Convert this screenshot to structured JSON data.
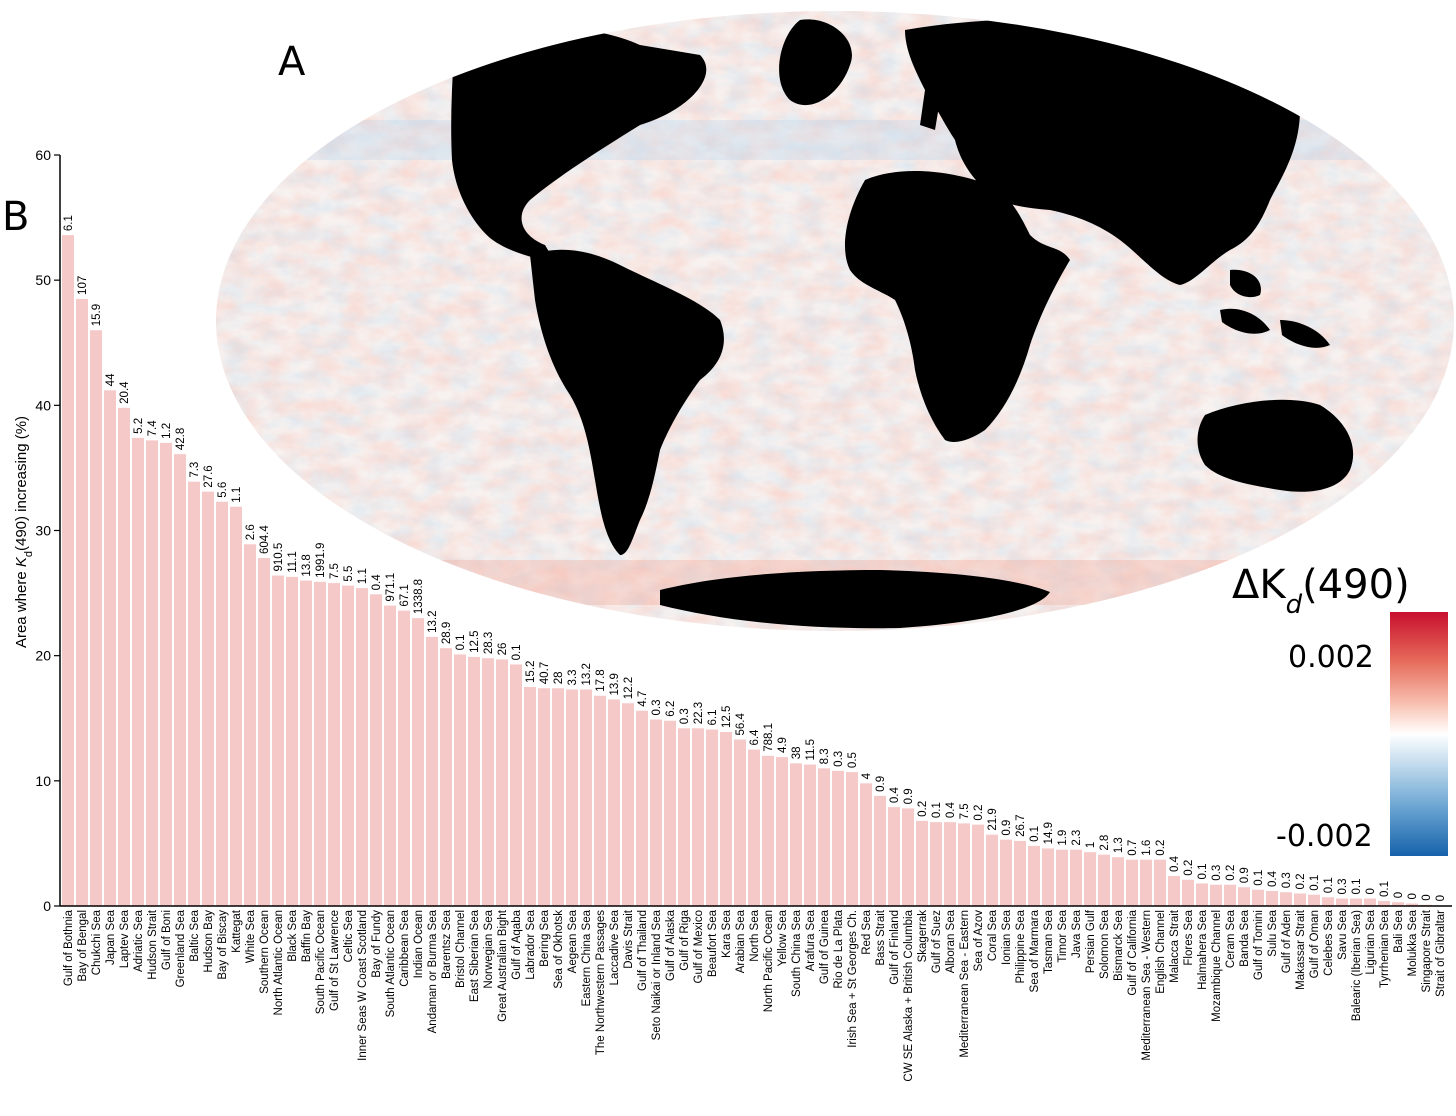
{
  "panels": {
    "map_label": "A",
    "chart_label": "B"
  },
  "colors": {
    "bar": "#f6c9c9",
    "bar_edge": "#efb3b3",
    "land": "#000000",
    "ocean_base": "#f7f3f2",
    "pos_strong": "#d7192b",
    "pos_light": "#f4a18a",
    "neg_strong": "#1f6fb5",
    "neg_light": "#a9cde6"
  },
  "map": {
    "icon": "world-map-mollweide",
    "colorbar": {
      "title_main": "ΔK",
      "title_sub": "d",
      "title_suffix": "(490)",
      "max_label": "0.002",
      "min_label": "-0.002"
    }
  },
  "chart_data": {
    "type": "bar",
    "ylabel_prefix": "Area where ",
    "ylabel_k": "K",
    "ylabel_sub": "d",
    "ylabel_suffix": "(490) increasing (%)",
    "ylim": [
      0,
      60
    ],
    "yticks": [
      "0",
      "10",
      "20",
      "30",
      "40",
      "50",
      "60"
    ],
    "grid": false,
    "categories": [
      "Gulf of Bothnia",
      "Bay of Bengal",
      "Chukchi Sea",
      "Japan Sea",
      "Laptev Sea",
      "Adriatic Sea",
      "Hudson Strait",
      "Gulf of Boni",
      "Greenland Sea",
      "Baltic Sea",
      "Hudson Bay",
      "Bay of Biscay",
      "Kattegat",
      "White Sea",
      "Southern Ocean",
      "North Atlantic Ocean",
      "Black Sea",
      "Baffin Bay",
      "South Pacific Ocean",
      "Gulf of St Lawrence",
      "Celtic Sea",
      "Inner Seas W Coast Scotland",
      "Bay of Fundy",
      "South Atlantic Ocean",
      "Caribbean Sea",
      "Indian Ocean",
      "Andaman or Burma Sea",
      "Barentsz Sea",
      "Bristol Channel",
      "East Siberian Sea",
      "Norwegian Sea",
      "Great Australian Bight",
      "Gulf of Aqaba",
      "Labrador Sea",
      "Bering Sea",
      "Sea of Okhotsk",
      "Aegean Sea",
      "Eastern China Sea",
      "The Northwestern Passages",
      "Laccadive Sea",
      "Davis Strait",
      "Gulf of Thailand",
      "Seto Naikai or Inland Sea",
      "Gulf of Alaska",
      "Gulf of Riga",
      "Gulf of Mexico",
      "Beaufort Sea",
      "Kara Sea",
      "Arabian Sea",
      "North Sea",
      "North Pacific Ocean",
      "Yellow Sea",
      "South China Sea",
      "Arafura Sea",
      "Gulf of Guinea",
      "Rio de La Plata",
      "Irish Sea + St Georges Ch.",
      "Red Sea",
      "Bass Strait",
      "Gulf of Finland",
      "CW SE Alaska + British Columbia",
      "Skagerrak",
      "Gulf of Suez",
      "Alboran Sea",
      "Mediterranean Sea - Eastern",
      "Sea of Azov",
      "Coral Sea",
      "Ionian Sea",
      "Philippine Sea",
      "Sea of Marmara",
      "Tasman Sea",
      "Timor Sea",
      "Java Sea",
      "Persian Gulf",
      "Solomon Sea",
      "Bismarck Sea",
      "Gulf of California",
      "Mediterranean Sea - Western",
      "English Channel",
      "Malacca Strait",
      "Flores Sea",
      "Halmahera Sea",
      "Mozambique Channel",
      "Ceram Sea",
      "Banda Sea",
      "Gulf of Tomini",
      "Sulu Sea",
      "Gulf of Aden",
      "Makassar Strait",
      "Gulf of Oman",
      "Celebes Sea",
      "Savu Sea",
      "Balearic (Iberian Sea)",
      "Ligurian Sea",
      "Tyrrhenian Sea",
      "Bali Sea",
      "Molukka Sea",
      "Singapore Strait",
      "Strait of Gibraltar"
    ],
    "values": [
      53.6,
      48.5,
      46.0,
      41.2,
      39.8,
      37.4,
      37.2,
      37.0,
      36.1,
      33.9,
      33.1,
      32.3,
      31.9,
      28.9,
      27.8,
      26.4,
      26.3,
      26.0,
      25.9,
      25.8,
      25.6,
      25.4,
      24.9,
      24.0,
      23.6,
      23.0,
      21.5,
      20.6,
      20.1,
      19.9,
      19.8,
      19.7,
      19.3,
      17.5,
      17.4,
      17.4,
      17.3,
      17.3,
      16.8,
      16.5,
      16.2,
      15.6,
      14.9,
      14.8,
      14.2,
      14.2,
      14.1,
      13.9,
      13.3,
      12.5,
      12.0,
      11.9,
      11.4,
      11.3,
      11.0,
      10.8,
      10.7,
      9.8,
      8.8,
      7.9,
      7.8,
      6.8,
      6.7,
      6.7,
      6.6,
      6.5,
      5.7,
      5.3,
      5.2,
      4.8,
      4.6,
      4.5,
      4.5,
      4.3,
      4.1,
      3.9,
      3.7,
      3.7,
      3.7,
      2.4,
      2.1,
      1.8,
      1.7,
      1.7,
      1.5,
      1.3,
      1.2,
      1.1,
      1.0,
      0.9,
      0.7,
      0.6,
      0.6,
      0.6,
      0.4,
      0.3,
      0.2,
      0.1,
      0.05
    ],
    "data_labels": [
      "6.1",
      "107",
      "15.9",
      "44",
      "20.4",
      "5.2",
      "7.4",
      "1.2",
      "42.8",
      "7.3",
      "27.6",
      "5.6",
      "1.1",
      "2.6",
      "604.4",
      "910.5",
      "11.1",
      "13.8",
      "1991.9",
      "7.5",
      "5.5",
      "1.1",
      "0.4",
      "971.1",
      "67.1",
      "1338.8",
      "13.2",
      "28.9",
      "0.1",
      "12.5",
      "28.3",
      "26",
      "0.1",
      "15.2",
      "40.7",
      "28",
      "3.3",
      "13.2",
      "17.8",
      "13.9",
      "12.2",
      "4.7",
      "0.3",
      "6.2",
      "0.3",
      "22.3",
      "6.1",
      "12.5",
      "56.4",
      "6.4",
      "788.1",
      "4.9",
      "38",
      "11.5",
      "8.3",
      "0.3",
      "0.5",
      "4",
      "0.9",
      "0.4",
      "0.9",
      "0.2",
      "0.1",
      "0.4",
      "7.5",
      "0.2",
      "21.9",
      "0.9",
      "26.7",
      "0.1",
      "14.9",
      "1.9",
      "2.3",
      "1",
      "2.8",
      "1.3",
      "0.7",
      "1.6",
      "0.2",
      "0.4",
      "0.2",
      "0.1",
      "0.3",
      "0.2",
      "0.9",
      "0.1",
      "0.4",
      "0.3",
      "0.2",
      "0.1",
      "0.1",
      "0.3",
      "0.1",
      "0",
      "0.1",
      "0",
      "0",
      "0",
      "0"
    ]
  }
}
